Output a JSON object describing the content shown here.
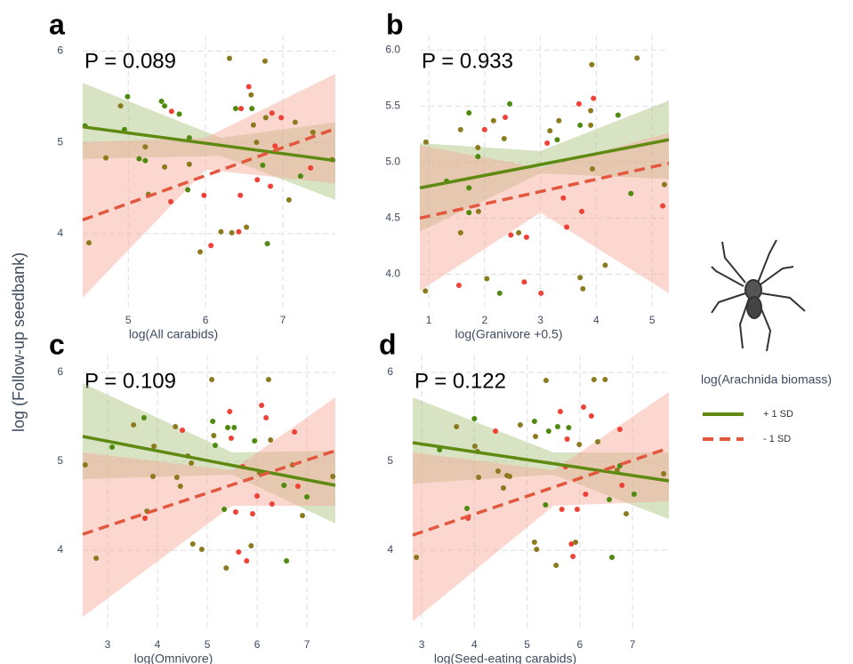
{
  "ylabel": "log (Follow-up seedbank)",
  "legend": {
    "title": "log(Arachnida biomass)",
    "series": [
      {
        "name": "+ 1 SD",
        "color": "#5e8a12",
        "dash": false,
        "band_color": "#a9c27c"
      },
      {
        "name": "- 1 SD",
        "color": "#e2573d",
        "dash": true,
        "band_color": "#f6a797"
      }
    ]
  },
  "chart_data": [
    {
      "type": "scatter",
      "label": "a",
      "annotation": "P = 0.089",
      "xlabel": "log(All carabids)",
      "xlim": [
        4.41,
        7.68
      ],
      "ylim": [
        3.2,
        6.17
      ],
      "xticks": [
        5,
        6,
        7
      ],
      "yticks": [
        4,
        5,
        6
      ],
      "grid": true,
      "points": {
        "x": [
          4.44,
          4.49,
          4.71,
          4.9,
          4.95,
          4.99,
          5.14,
          5.22,
          5.22,
          5.26,
          5.43,
          5.47,
          5.47,
          5.55,
          5.56,
          5.66,
          5.77,
          5.79,
          5.79,
          5.93,
          5.98,
          6.07,
          6.2,
          6.31,
          6.34,
          6.39,
          6.43,
          6.45,
          6.46,
          6.53,
          6.56,
          6.59,
          6.6,
          6.62,
          6.66,
          6.67,
          6.74,
          6.77,
          6.78,
          6.8,
          6.84,
          6.86,
          6.9,
          6.98,
          7.08,
          7.16,
          7.23,
          7.36,
          7.39,
          7.64
        ],
        "values": [
          5.18,
          3.9,
          4.83,
          5.4,
          5.14,
          5.5,
          4.82,
          4.95,
          4.8,
          4.43,
          5.45,
          4.73,
          5.4,
          4.35,
          5.34,
          5.31,
          4.48,
          5.05,
          4.76,
          3.8,
          4.42,
          3.87,
          4.02,
          5.92,
          4.01,
          5.37,
          4.02,
          4.42,
          5.37,
          4.07,
          5.61,
          5.52,
          5.37,
          5.19,
          5.0,
          4.59,
          4.75,
          5.89,
          5.27,
          3.89,
          4.52,
          5.32,
          4.96,
          5.27,
          4.37,
          5.22,
          4.63,
          4.72,
          5.11,
          4.81
        ],
        "colors": [
          "#4e8a0e",
          "#8b7a1e",
          "#8b7a1e",
          "#8b7a1e",
          "#4e8a0e",
          "#4e8a0e",
          "#4e8a0e",
          "#8b7a1e",
          "#4e8a0e",
          "#8b7a1e",
          "#4e8a0e",
          "#8b7a1e",
          "#4e8a0e",
          "#ef4136",
          "#ef4136",
          "#4e8a0e",
          "#4e8a0e",
          "#4e8a0e",
          "#8b7a1e",
          "#8b7a1e",
          "#ef4136",
          "#ef4136",
          "#8b7a1e",
          "#8b7a1e",
          "#8b7a1e",
          "#4e8a0e",
          "#ef4136",
          "#ef4136",
          "#ef4136",
          "#8b7a1e",
          "#ef4136",
          "#8b7a1e",
          "#4e8a0e",
          "#8b7a1e",
          "#8b7a1e",
          "#ef4136",
          "#4e8a0e",
          "#8b7a1e",
          "#8b7a1e",
          "#4e8a0e",
          "#ef4136",
          "#ef4136",
          "#ef4136",
          "#ef4136",
          "#8b7a1e",
          "#8b7a1e",
          "#4e8a0e",
          "#ef4136",
          "#8b7a1e",
          "#8b7a1e"
        ]
      },
      "series": [
        {
          "x": [
            4.41,
            7.68
          ],
          "values": [
            5.17,
            4.8
          ],
          "band_x": [
            4.41,
            6.2,
            7.68
          ],
          "band_low": [
            4.82,
            4.85,
            4.37
          ],
          "band_high": [
            5.65,
            5.05,
            5.22
          ]
        },
        {
          "x": [
            4.41,
            7.68
          ],
          "values": [
            4.15,
            5.15
          ],
          "band_x": [
            4.41,
            6.0,
            7.68
          ],
          "band_low": [
            3.3,
            4.7,
            4.55
          ],
          "band_high": [
            5.0,
            5.05,
            5.75
          ]
        }
      ]
    },
    {
      "type": "scatter",
      "label": "b",
      "annotation": "P = 0.933",
      "xlabel": "log(Granivore +0.5)",
      "xlim": [
        0.84,
        5.3
      ],
      "ylim": [
        3.71,
        6.13
      ],
      "xticks": [
        1,
        2,
        3,
        4,
        5
      ],
      "yticks": [
        {
          "value": 4,
          "label": "4.0"
        },
        4.5,
        {
          "value": 5,
          "label": "5.0"
        },
        5.5,
        {
          "value": 6,
          "label": "6.0"
        }
      ],
      "grid": true,
      "points": {
        "x": [
          0.95,
          0.94,
          1.32,
          1.54,
          1.57,
          1.57,
          1.72,
          1.72,
          1.72,
          1.88,
          1.88,
          1.89,
          2.0,
          2.04,
          2.16,
          2.27,
          2.35,
          2.37,
          2.45,
          2.47,
          2.61,
          2.71,
          2.75,
          3.01,
          3.12,
          3.17,
          3.3,
          3.33,
          3.41,
          3.47,
          3.69,
          3.71,
          3.71,
          3.74,
          3.76,
          3.9,
          3.9,
          3.92,
          3.95,
          3.93,
          4.16,
          4.39,
          4.62,
          4.73,
          5.22,
          5.19
        ],
        "values": [
          5.18,
          3.85,
          4.83,
          3.9,
          4.37,
          5.29,
          5.44,
          4.77,
          4.55,
          5.13,
          5.05,
          4.56,
          5.29,
          3.96,
          5.37,
          3.83,
          5.21,
          5.4,
          5.52,
          4.35,
          4.37,
          3.93,
          4.33,
          3.83,
          5.17,
          5.28,
          5.2,
          5.37,
          4.68,
          4.42,
          5.52,
          5.33,
          3.97,
          4.56,
          3.87,
          5.33,
          5.46,
          5.87,
          5.57,
          4.94,
          4.08,
          5.42,
          4.72,
          5.93,
          4.8,
          4.61
        ],
        "colors": [
          "#8b7a1e",
          "#8b7a1e",
          "#4e8a0e",
          "#ef4136",
          "#8b7a1e",
          "#8b7a1e",
          "#4e8a0e",
          "#4e8a0e",
          "#4e8a0e",
          "#8b7a1e",
          "#4e8a0e",
          "#8b7a1e",
          "#ef4136",
          "#8b7a1e",
          "#8b7a1e",
          "#4e8a0e",
          "#8b7a1e",
          "#ef4136",
          "#4e8a0e",
          "#ef4136",
          "#8b7a1e",
          "#ef4136",
          "#ef4136",
          "#ef4136",
          "#ef4136",
          "#8b7a1e",
          "#4e8a0e",
          "#8b7a1e",
          "#ef4136",
          "#ef4136",
          "#ef4136",
          "#4e8a0e",
          "#8b7a1e",
          "#ef4136",
          "#8b7a1e",
          "#8b7a1e",
          "#8b7a1e",
          "#8b7a1e",
          "#ef4136",
          "#8b7a1e",
          "#8b7a1e",
          "#4e8a0e",
          "#4e8a0e",
          "#8b7a1e",
          "#8b7a1e",
          "#ef4136"
        ]
      },
      "series": [
        {
          "x": [
            0.84,
            5.3
          ],
          "values": [
            4.77,
            5.2
          ],
          "band_x": [
            0.84,
            3.0,
            5.3
          ],
          "band_low": [
            4.38,
            4.9,
            4.85
          ],
          "band_high": [
            5.17,
            5.1,
            5.55
          ]
        },
        {
          "x": [
            0.84,
            5.3
          ],
          "values": [
            4.5,
            4.99
          ],
          "band_x": [
            0.84,
            3.0,
            5.3
          ],
          "band_low": [
            3.85,
            4.55,
            3.83
          ],
          "band_high": [
            5.15,
            4.95,
            5.26
          ]
        }
      ]
    },
    {
      "type": "scatter",
      "label": "c",
      "annotation": "P = 0.109",
      "xlabel": "log(Omnivore)",
      "xlim": [
        2.5,
        7.57
      ],
      "ylim": [
        3.09,
        6.19
      ],
      "xticks": [
        3,
        4,
        5,
        6,
        7
      ],
      "yticks": [
        4,
        5,
        6
      ],
      "grid": true,
      "points": {
        "x": [
          2.55,
          2.77,
          3.09,
          3.52,
          3.73,
          3.75,
          3.79,
          3.93,
          3.91,
          4.36,
          4.39,
          4.46,
          4.5,
          4.61,
          4.68,
          4.71,
          4.89,
          5.09,
          5.11,
          5.13,
          5.16,
          5.34,
          5.38,
          5.41,
          5.45,
          5.48,
          5.54,
          5.57,
          5.63,
          5.71,
          5.79,
          5.88,
          5.91,
          5.95,
          6.0,
          6.05,
          6.09,
          6.18,
          6.23,
          6.27,
          6.3,
          6.54,
          6.59,
          6.71,
          6.75,
          6.82,
          6.91,
          7.0,
          7.52
        ],
        "values": [
          4.96,
          3.91,
          5.16,
          5.41,
          5.49,
          4.36,
          4.44,
          5.17,
          4.83,
          5.39,
          4.82,
          4.72,
          5.35,
          5.06,
          4.98,
          4.07,
          4.01,
          5.92,
          5.45,
          5.29,
          5.18,
          4.46,
          3.8,
          5.38,
          5.56,
          5.26,
          5.38,
          4.43,
          3.98,
          4.94,
          3.88,
          4.05,
          4.41,
          5.23,
          4.61,
          4.87,
          5.63,
          5.49,
          5.92,
          5.24,
          4.52,
          4.73,
          3.88,
          4.96,
          5.33,
          4.72,
          4.39,
          4.6,
          4.83
        ],
        "colors": [
          "#8b7a1e",
          "#8b7a1e",
          "#4e8a0e",
          "#8b7a1e",
          "#4e8a0e",
          "#ef4136",
          "#8b7a1e",
          "#8b7a1e",
          "#8b7a1e",
          "#8b7a1e",
          "#8b7a1e",
          "#8b7a1e",
          "#ef4136",
          "#8b7a1e",
          "#8b7a1e",
          "#8b7a1e",
          "#8b7a1e",
          "#8b7a1e",
          "#4e8a0e",
          "#8b7a1e",
          "#4e8a0e",
          "#4e8a0e",
          "#8b7a1e",
          "#4e8a0e",
          "#ef4136",
          "#ef4136",
          "#4e8a0e",
          "#ef4136",
          "#ef4136",
          "#ef4136",
          "#ef4136",
          "#8b7a1e",
          "#ef4136",
          "#4e8a0e",
          "#ef4136",
          "#8b7a1e",
          "#ef4136",
          "#ef4136",
          "#8b7a1e",
          "#8b7a1e",
          "#ef4136",
          "#4e8a0e",
          "#4e8a0e",
          "#8b7a1e",
          "#ef4136",
          "#ef4136",
          "#8b7a1e",
          "#4e8a0e",
          "#8b7a1e"
        ]
      },
      "series": [
        {
          "x": [
            2.5,
            7.57
          ],
          "values": [
            5.28,
            4.73
          ],
          "band_x": [
            2.5,
            5.5,
            7.57
          ],
          "band_low": [
            4.8,
            4.85,
            4.3
          ],
          "band_high": [
            5.88,
            5.1,
            5.12
          ]
        },
        {
          "x": [
            2.5,
            7.57
          ],
          "values": [
            4.18,
            5.12
          ],
          "band_x": [
            2.5,
            5.5,
            7.57
          ],
          "band_low": [
            3.25,
            4.5,
            4.5
          ],
          "band_high": [
            5.1,
            4.9,
            5.72
          ]
        }
      ]
    },
    {
      "type": "scatter",
      "label": "d",
      "annotation": "P = 0.122",
      "xlabel": "log(Seed-eating carabids)",
      "xlim": [
        2.83,
        7.69
      ],
      "ylim": [
        3.09,
        6.19
      ],
      "xticks": [
        3,
        4,
        5,
        6,
        7
      ],
      "yticks": [
        4,
        5,
        6
      ],
      "grid": true,
      "points": {
        "x": [
          2.9,
          3.34,
          3.66,
          3.86,
          3.88,
          4.0,
          4.01,
          4.06,
          4.08,
          4.4,
          4.45,
          4.55,
          4.62,
          4.67,
          4.87,
          5.14,
          5.16,
          5.14,
          5.18,
          5.36,
          5.35,
          5.41,
          5.55,
          5.58,
          5.63,
          5.66,
          5.73,
          5.76,
          5.79,
          5.84,
          5.87,
          5.92,
          5.95,
          5.99,
          6.07,
          6.11,
          6.22,
          6.27,
          6.34,
          6.48,
          6.56,
          6.61,
          6.71,
          6.76,
          6.76,
          6.8,
          6.88,
          7.03,
          7.59
        ],
        "values": [
          3.92,
          5.13,
          5.39,
          4.47,
          4.36,
          5.48,
          5.17,
          5.11,
          4.82,
          5.34,
          4.89,
          4.7,
          4.84,
          4.83,
          5.41,
          5.45,
          5.28,
          4.09,
          4.01,
          5.91,
          4.51,
          5.34,
          3.83,
          5.39,
          5.56,
          4.46,
          4.94,
          5.25,
          5.38,
          4.07,
          3.93,
          4.09,
          4.46,
          5.19,
          5.61,
          4.63,
          5.51,
          5.92,
          5.22,
          5.92,
          4.57,
          3.92,
          4.9,
          5.36,
          4.95,
          4.73,
          4.41,
          4.63,
          4.86
        ],
        "colors": [
          "#8b7a1e",
          "#4e8a0e",
          "#8b7a1e",
          "#4e8a0e",
          "#ef4136",
          "#4e8a0e",
          "#8b7a1e",
          "#8b7a1e",
          "#8b7a1e",
          "#ef4136",
          "#8b7a1e",
          "#8b7a1e",
          "#8b7a1e",
          "#8b7a1e",
          "#8b7a1e",
          "#4e8a0e",
          "#8b7a1e",
          "#8b7a1e",
          "#8b7a1e",
          "#8b7a1e",
          "#4e8a0e",
          "#4e8a0e",
          "#8b7a1e",
          "#4e8a0e",
          "#ef4136",
          "#ef4136",
          "#ef4136",
          "#ef4136",
          "#4e8a0e",
          "#ef4136",
          "#ef4136",
          "#8b7a1e",
          "#ef4136",
          "#8b7a1e",
          "#ef4136",
          "#ef4136",
          "#ef4136",
          "#8b7a1e",
          "#8b7a1e",
          "#8b7a1e",
          "#4e8a0e",
          "#4e8a0e",
          "#8b7a1e",
          "#ef4136",
          "#4e8a0e",
          "#ef4136",
          "#8b7a1e",
          "#4e8a0e",
          "#8b7a1e"
        ]
      },
      "series": [
        {
          "x": [
            2.83,
            7.69
          ],
          "values": [
            5.21,
            4.78
          ],
          "band_x": [
            2.83,
            5.5,
            7.69
          ],
          "band_low": [
            4.75,
            4.85,
            4.35
          ],
          "band_high": [
            5.72,
            5.1,
            5.1
          ]
        },
        {
          "x": [
            2.83,
            7.69
          ],
          "values": [
            4.17,
            5.15
          ],
          "band_x": [
            2.83,
            5.5,
            7.69
          ],
          "band_low": [
            3.2,
            4.5,
            4.55
          ],
          "band_high": [
            5.1,
            4.9,
            5.78
          ]
        }
      ]
    }
  ]
}
